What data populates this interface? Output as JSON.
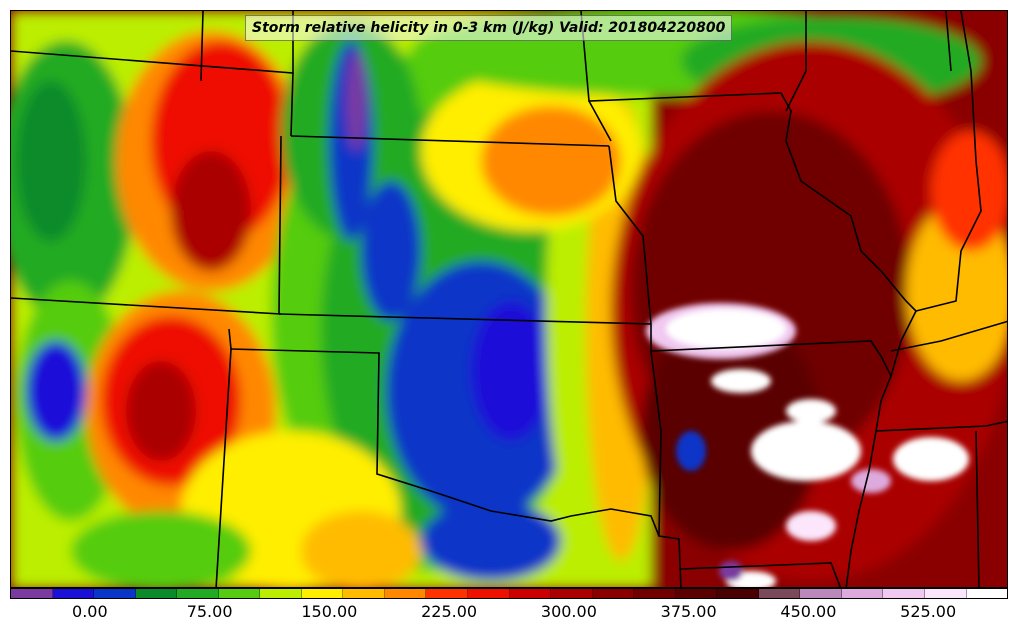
{
  "title": "Storm relative helicity in 0-3 km (J/kg) Valid: 201804220800",
  "colorbar": {
    "tick_labels": [
      "0.00",
      "75.00",
      "150.00",
      "225.00",
      "300.00",
      "375.00",
      "450.00",
      "525.00"
    ],
    "colors": [
      "#7a3aa0",
      "#1a10d8",
      "#0a36c8",
      "#0a8a2a",
      "#22aa22",
      "#55cc11",
      "#bbee00",
      "#ffee00",
      "#ffbb00",
      "#ff8800",
      "#ff3300",
      "#ee1100",
      "#cc0000",
      "#aa0000",
      "#8a0000",
      "#700000",
      "#5a0000",
      "#480000",
      "#7a4a5a",
      "#bb88bb",
      "#ddaadd",
      "#f0c8f0",
      "#fbe6fb",
      "#ffffff"
    ],
    "range": [
      -50,
      575
    ],
    "step": 25
  },
  "map": {
    "region": "central United States",
    "field": "storm relative helicity 0-3 km"
  }
}
